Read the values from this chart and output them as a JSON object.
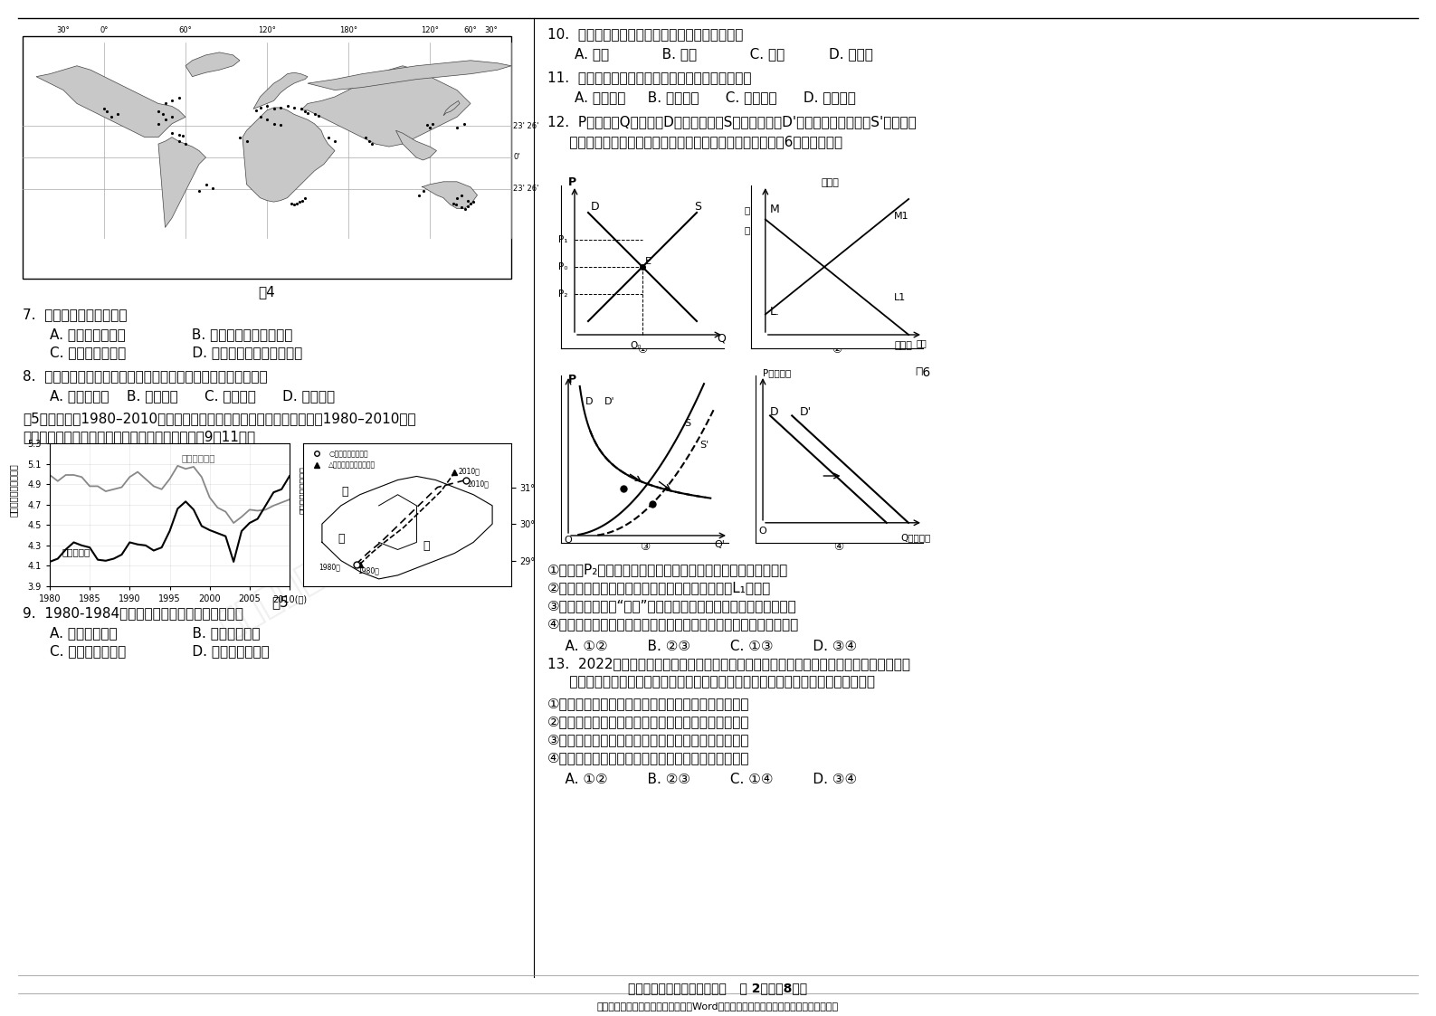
{
  "background_color": "#ffffff",
  "text_color": "#000000"
}
